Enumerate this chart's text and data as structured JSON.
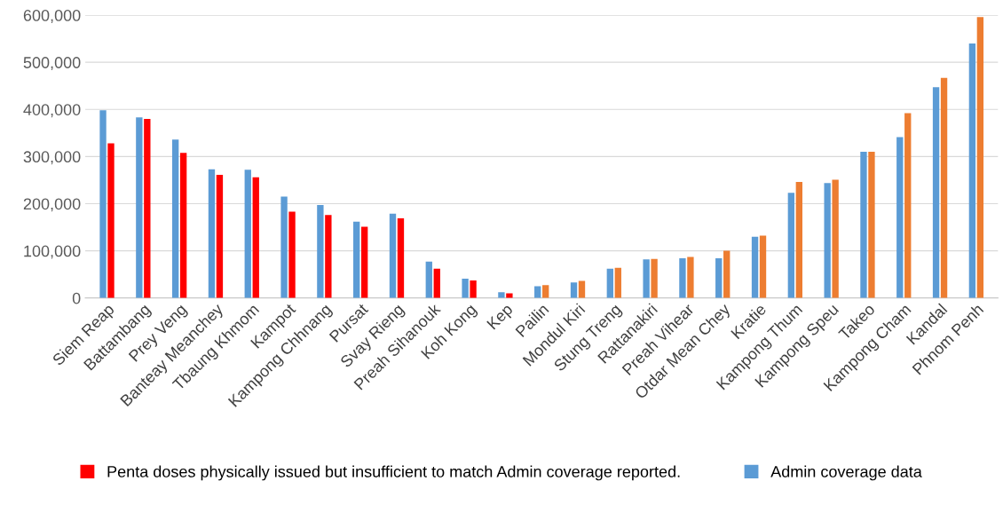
{
  "chart_data": {
    "type": "bar",
    "categories": [
      "Siem Reap",
      "Battambang",
      "Prey Veng",
      "Banteay Meanchey",
      "Tbaung Khmom",
      "Kampot",
      "Kampong Chhnang",
      "Pursat",
      "Svay Rieng",
      "Preah Sihanouk",
      "Koh Kong",
      "Kep",
      "Pailin",
      "Mondul Kiri",
      "Stung Treng",
      "Rattanakiri",
      "Preah Vihear",
      "Otdar Mean Chey",
      "Kratie",
      "Kampong Thum",
      "Kampong Speu",
      "Takeo",
      "Kampong Cham",
      "Kandal",
      "Phnom Penh"
    ],
    "series": [
      {
        "name": "Admin coverage data",
        "color": "#5b9bd5",
        "values": [
          398000,
          383000,
          336000,
          273000,
          272000,
          215000,
          197000,
          162000,
          179000,
          77000,
          41000,
          12000,
          25000,
          33000,
          62000,
          82000,
          84000,
          84000,
          130000,
          223000,
          244000,
          310000,
          341000,
          447000,
          540000
        ]
      },
      {
        "name": "Penta doses physically issued but insufficient to match Admin coverage reported.",
        "color": "#ff0000",
        "colors": [
          "#ff0000",
          "#ff0000",
          "#ff0000",
          "#ff0000",
          "#ff0000",
          "#ff0000",
          "#ff0000",
          "#ff0000",
          "#ff0000",
          "#ff0000",
          "#ff0000",
          "#ff0000",
          "#ed7d31",
          "#ed7d31",
          "#ed7d31",
          "#ed7d31",
          "#ed7d31",
          "#ed7d31",
          "#ed7d31",
          "#ed7d31",
          "#ed7d31",
          "#ed7d31",
          "#ed7d31",
          "#ed7d31",
          "#ed7d31"
        ],
        "values": [
          328000,
          380000,
          308000,
          261000,
          256000,
          183000,
          176000,
          151000,
          169000,
          62000,
          37000,
          10000,
          27000,
          36000,
          64000,
          83000,
          87000,
          100000,
          132000,
          246000,
          251000,
          310000,
          392000,
          467000,
          596000
        ]
      }
    ],
    "ylim": [
      0,
      600000
    ],
    "yticks": [
      {
        "value": 0,
        "label": "0"
      },
      {
        "value": 100000,
        "label": "100,000"
      },
      {
        "value": 200000,
        "label": "200,000"
      },
      {
        "value": 300000,
        "label": "300,000"
      },
      {
        "value": 400000,
        "label": "400,000"
      },
      {
        "value": 500000,
        "label": "500,000"
      },
      {
        "value": 600000,
        "label": "600,000"
      }
    ],
    "grid": "y",
    "legend": "bottom"
  }
}
